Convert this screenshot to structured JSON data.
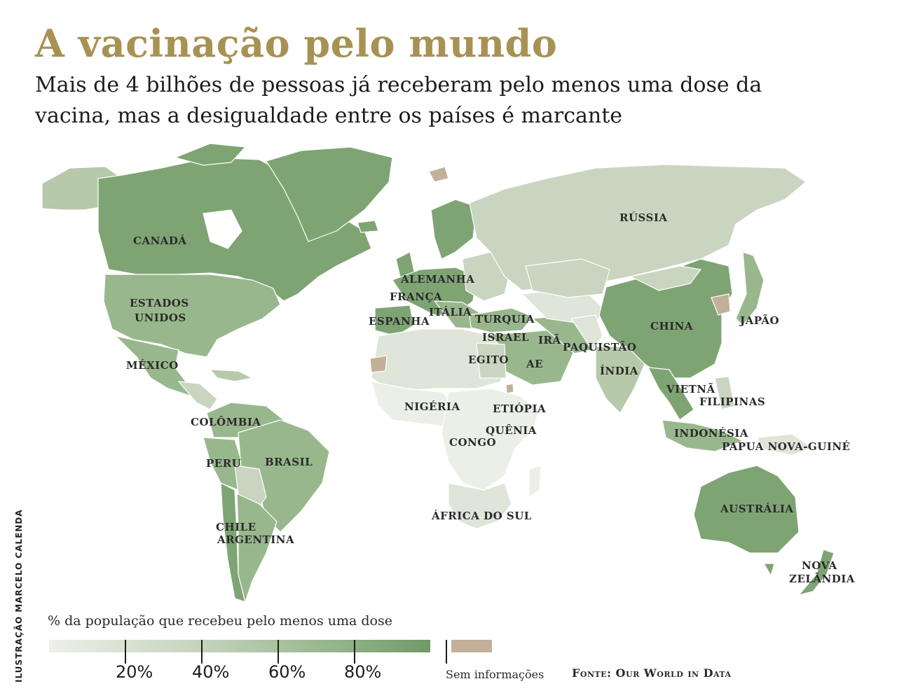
{
  "title": "A vacinação pelo mundo",
  "subtitle": "Mais de 4 bilhões de pessoas já receberam pelo menos uma dose da vacina, mas a desigualdade entre os países é marcante",
  "credit": "ILUSTRAÇÃO MARCELO CALENDA",
  "colors": {
    "high": "#7fa474",
    "midhigh": "#98b78d",
    "mid": "#b6c9ab",
    "low": "#c9d5c0",
    "verylow": "#dfe5d8",
    "lowest": "#ecefe8",
    "nodata": "#c2b098"
  },
  "labels": {
    "canada": "CANADÁ",
    "eua1": "ESTADOS",
    "eua2": "UNIDOS",
    "mexico": "MÉXICO",
    "colombia": "COLÔMBIA",
    "peru": "PERU",
    "brasil": "BRASIL",
    "chile": "CHILE",
    "argentina": "ARGENTINA",
    "alemanha": "ALEMANHA",
    "franca": "FRANÇA",
    "italia": "ITÁLIA",
    "espanha": "ESPANHA",
    "turquia": "TURQUIA",
    "israel": "ISRAEL",
    "egito": "EGITO",
    "ira": "IRÃ",
    "ae": "AE",
    "paquistao": "PAQUISTÃO",
    "india": "ÍNDIA",
    "russia": "RÚSSIA",
    "china": "CHINA",
    "japao": "JAPÃO",
    "vietna": "VIETNÃ",
    "filipinas": "FILIPINAS",
    "indonesia": "INDONÉSIA",
    "papua": "PAPUA NOVA-GUINÉ",
    "australia": "AUSTRÁLIA",
    "nz1": "NOVA",
    "nz2": "ZELÂNDIA",
    "nigeria": "NIGÉRIA",
    "etiopia": "ETIÓPIA",
    "quenia": "QUÊNIA",
    "congo": "CONGO",
    "africa_sul": "ÁFRICA DO SUL"
  },
  "legend": {
    "title": "% da população que recebeu pelo menos uma dose",
    "ticks": [
      "20%",
      "40%",
      "60%",
      "80%"
    ],
    "tick_values": [
      20,
      40,
      60,
      80
    ],
    "nodata_label": "Sem informações"
  },
  "source": "Fonte: Our World in Data"
}
